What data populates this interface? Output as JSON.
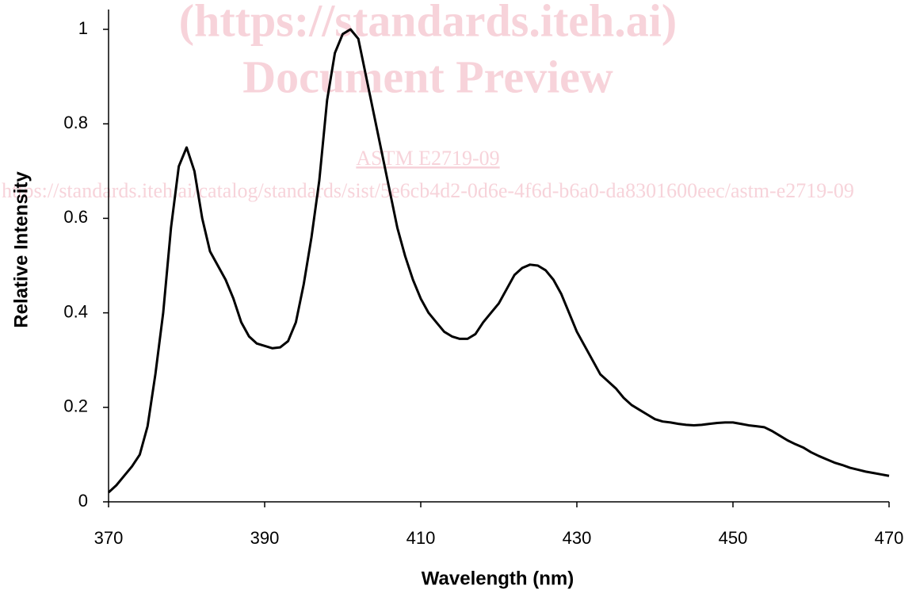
{
  "chart_data": {
    "type": "line",
    "xlabel": "Wavelength (nm)",
    "ylabel": "Relative Intensity",
    "annotations": [
      "(https://standards.iteh.ai)",
      "Document Preview",
      "ASTM E2719-09",
      "https://standards.iteh.ai/catalog/standards/sist/5e6cb4d2-0d6e-4f6d-b6a0-da8301600eec/astm-e2719-09"
    ],
    "x": [
      370,
      371,
      372,
      373,
      374,
      375,
      376,
      377,
      378,
      379,
      380,
      381,
      382,
      383,
      384,
      385,
      386,
      387,
      388,
      389,
      390,
      391,
      392,
      393,
      394,
      395,
      396,
      397,
      398,
      399,
      400,
      401,
      402,
      403,
      404,
      405,
      406,
      407,
      408,
      409,
      410,
      411,
      412,
      413,
      414,
      415,
      416,
      417,
      418,
      419,
      420,
      421,
      422,
      423,
      424,
      425,
      426,
      427,
      428,
      429,
      430,
      431,
      432,
      433,
      434,
      435,
      436,
      437,
      438,
      439,
      440,
      441,
      442,
      443,
      444,
      445,
      446,
      447,
      448,
      449,
      450,
      451,
      452,
      453,
      454,
      455,
      456,
      457,
      458,
      459,
      460,
      461,
      462,
      463,
      464,
      465,
      466,
      467,
      468,
      469,
      470
    ],
    "values": [
      0.02,
      0.035,
      0.055,
      0.075,
      0.1,
      0.16,
      0.27,
      0.4,
      0.58,
      0.71,
      0.75,
      0.7,
      0.6,
      0.53,
      0.5,
      0.47,
      0.43,
      0.38,
      0.35,
      0.335,
      0.33,
      0.325,
      0.327,
      0.34,
      0.38,
      0.46,
      0.56,
      0.68,
      0.85,
      0.95,
      0.99,
      1.0,
      0.98,
      0.9,
      0.82,
      0.74,
      0.66,
      0.58,
      0.52,
      0.47,
      0.43,
      0.4,
      0.38,
      0.36,
      0.35,
      0.345,
      0.345,
      0.355,
      0.38,
      0.4,
      0.42,
      0.45,
      0.48,
      0.495,
      0.502,
      0.5,
      0.49,
      0.47,
      0.44,
      0.4,
      0.36,
      0.33,
      0.3,
      0.27,
      0.255,
      0.24,
      0.22,
      0.205,
      0.195,
      0.185,
      0.175,
      0.17,
      0.168,
      0.165,
      0.163,
      0.162,
      0.163,
      0.165,
      0.167,
      0.168,
      0.168,
      0.165,
      0.162,
      0.16,
      0.158,
      0.15,
      0.14,
      0.13,
      0.122,
      0.115,
      0.105,
      0.097,
      0.09,
      0.083,
      0.078,
      0.072,
      0.068,
      0.064,
      0.061,
      0.058,
      0.055
    ],
    "color": "#000000",
    "xlim": [
      370,
      470
    ],
    "xticks": [
      370,
      390,
      410,
      430,
      450,
      470
    ],
    "ylim": [
      0,
      1
    ],
    "yticks": [
      0,
      0.2,
      0.4,
      0.6,
      0.8,
      1
    ],
    "grid": false
  }
}
